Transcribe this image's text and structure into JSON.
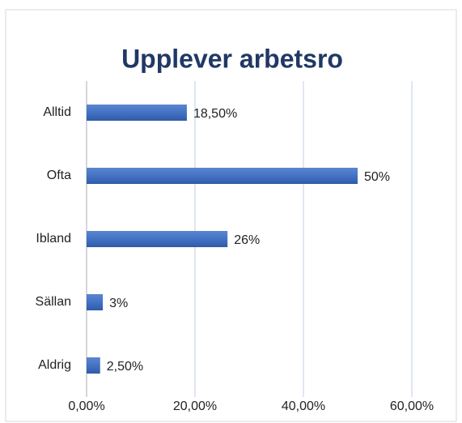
{
  "chart_data": {
    "type": "bar",
    "orientation": "horizontal",
    "title": "Upplever arbetsro",
    "categories": [
      "Alltid",
      "Ofta",
      "Ibland",
      "Sällan",
      "Aldrig"
    ],
    "values": [
      18.5,
      50,
      26,
      3,
      2.5
    ],
    "value_labels": [
      "18,50%",
      "50%",
      "26%",
      "3%",
      "2,50%"
    ],
    "color": "#4472c4",
    "xlim": [
      0,
      60
    ],
    "xticks": [
      {
        "value": 0,
        "label": "0,00%"
      },
      {
        "value": 20,
        "label": "20,00%"
      },
      {
        "value": 40,
        "label": "40,00%"
      },
      {
        "value": 60,
        "label": "60,00%"
      }
    ],
    "grid": true
  }
}
